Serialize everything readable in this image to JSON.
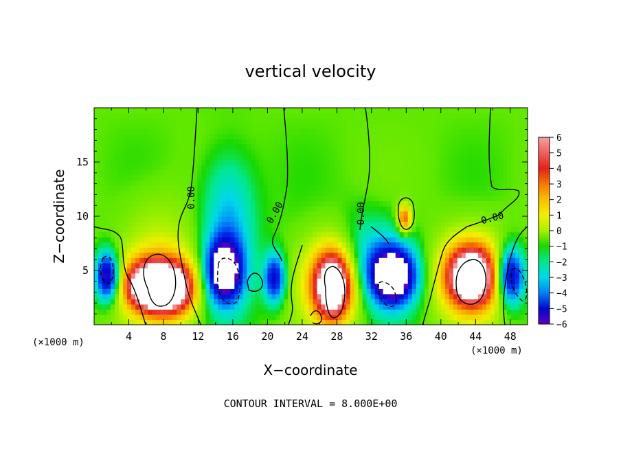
{
  "chart_data": {
    "type": "heatmap",
    "title": "vertical velocity",
    "xlabel": "X−coordinate",
    "ylabel": "Z−coordinate",
    "x_unit_label": "(×1000 m)",
    "z_unit_label": "(×1000 m)",
    "footer": "CONTOUR INTERVAL = 8.000E+00",
    "xlim": [
      0,
      50
    ],
    "ylim": [
      0,
      20
    ],
    "x_ticks": [
      4,
      8,
      12,
      16,
      20,
      24,
      28,
      32,
      36,
      40,
      44,
      48
    ],
    "x_tick_labels": [
      "4",
      "8",
      "12",
      "16",
      "20",
      "24",
      "28",
      "32",
      "36",
      "40",
      "44",
      "48"
    ],
    "y_ticks": [
      5,
      10,
      15
    ],
    "y_tick_labels": [
      "5",
      "10",
      "15"
    ],
    "colorbar": {
      "min": -6,
      "max": 6,
      "tick_labels": [
        "6",
        "5",
        "4",
        "3",
        "2",
        "1",
        "0",
        "−1",
        "−2",
        "−3",
        "−4",
        "−5",
        "−6"
      ],
      "colors": [
        "#f4a0a0",
        "#ee6060",
        "#e52018",
        "#f87800",
        "#f8c000",
        "#f0f000",
        "#a8f000",
        "#18d800",
        "#00e890",
        "#00d8e8",
        "#0080f8",
        "#0008d0",
        "#6000c0"
      ]
    },
    "contour_labels": [
      "0.00",
      "0.00",
      "0.00",
      "0.00"
    ],
    "cells": [
      {
        "x": 6,
        "z": 3.6,
        "w": 0.8,
        "sx": 2.2,
        "sz": 2.0,
        "peak": 1.0
      },
      {
        "x": 9,
        "z": 3.4,
        "w": 0.8,
        "sx": 2.4,
        "sz": 2.2,
        "peak": 1.0
      },
      {
        "x": 7.5,
        "z": 4,
        "w": 0.8,
        "sx": 4.5,
        "sz": 4.0,
        "peak": 0.55
      },
      {
        "x": 7,
        "z": 10.5,
        "w": 0.3,
        "sx": 4,
        "sz": 3.0,
        "peak": 0.2
      },
      {
        "x": 27.5,
        "z": 3.5,
        "w": 0.8,
        "sx": 1.9,
        "sz": 2.8,
        "peak": 1.0
      },
      {
        "x": 27.5,
        "z": 4,
        "w": 0.8,
        "sx": 3.6,
        "sz": 4.0,
        "peak": 0.55
      },
      {
        "x": 43.5,
        "z": 4.5,
        "w": 0.8,
        "sx": 2.5,
        "sz": 2.5,
        "peak": 1.0
      },
      {
        "x": 43.5,
        "z": 4.5,
        "w": 0.8,
        "sx": 4.2,
        "sz": 4.0,
        "peak": 0.55
      },
      {
        "x": 35.8,
        "z": 9.8,
        "w": 0.5,
        "sx": 0.8,
        "sz": 1.3,
        "peak": 1.0
      },
      {
        "x": 20.8,
        "z": 4.3,
        "w": -0.7,
        "sx": 1.2,
        "sz": 2.2,
        "peak": 0.8
      },
      {
        "x": 15,
        "z": 5,
        "w": -0.8,
        "sx": 2.0,
        "sz": 2.8,
        "peak": 1.0
      },
      {
        "x": 15.5,
        "z": 7.5,
        "w": -0.6,
        "sx": 3.0,
        "sz": 6.0,
        "peak": 0.45
      },
      {
        "x": 15.5,
        "z": 12.5,
        "w": -0.35,
        "sx": 2.8,
        "sz": 4.0,
        "peak": 0.25
      },
      {
        "x": 1.5,
        "z": 4.5,
        "w": -0.7,
        "sx": 1.3,
        "sz": 2.2,
        "peak": 1.0
      },
      {
        "x": 34.5,
        "z": 4.5,
        "w": -0.8,
        "sx": 2.4,
        "sz": 2.3,
        "peak": 1.0
      },
      {
        "x": 34,
        "z": 5,
        "w": -0.6,
        "sx": 3.5,
        "sz": 3.8,
        "peak": 0.5
      },
      {
        "x": 48,
        "z": 4.5,
        "w": -0.7,
        "sx": 1.6,
        "sz": 2.6,
        "peak": 1.0
      },
      {
        "x": 31,
        "z": 6.5,
        "w": -0.3,
        "sx": 3,
        "sz": 4,
        "peak": 0.5
      }
    ]
  }
}
